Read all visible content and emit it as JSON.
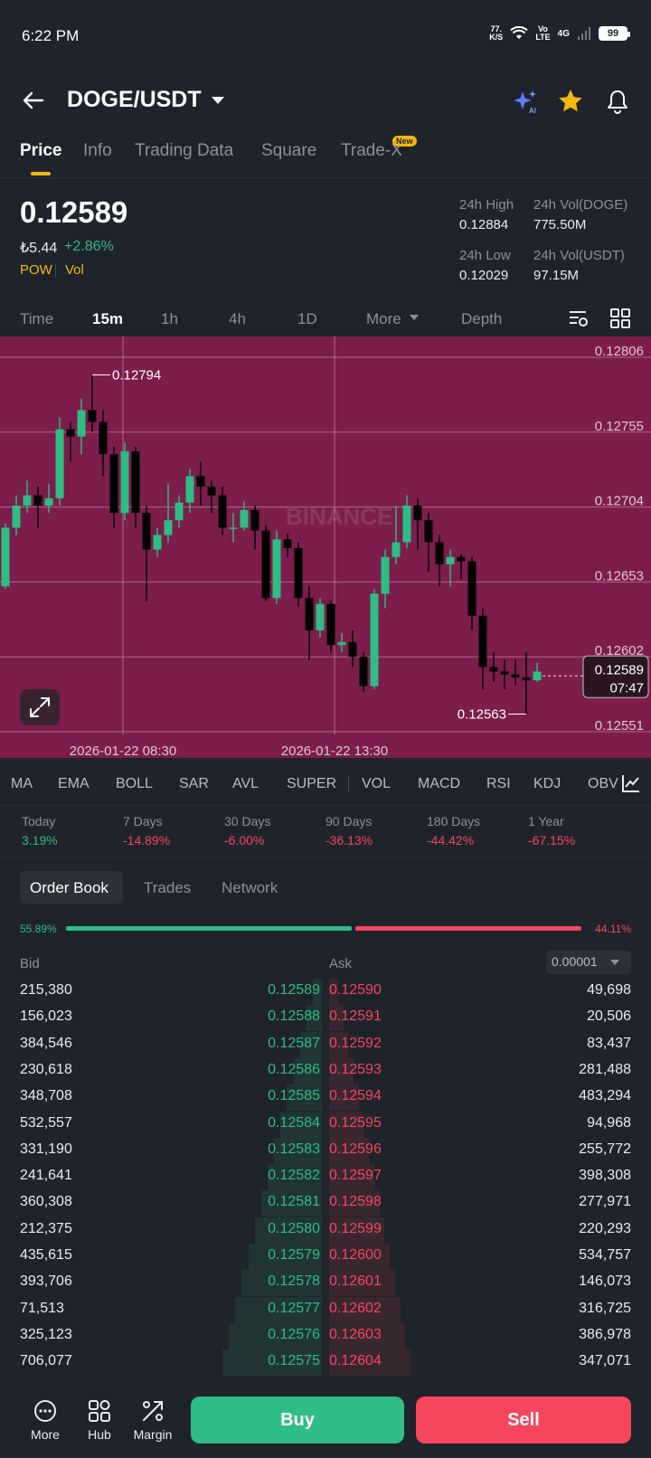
{
  "status_bar": {
    "time": "6:22 PM",
    "net_speed_value": "77.",
    "net_speed_unit": "K/S",
    "volte_top": "Vo",
    "volte_bottom": "LTE",
    "signal_label": "4G",
    "battery": "99",
    "icons": [
      "wifi-icon",
      "signal-icon",
      "battery-icon"
    ]
  },
  "header": {
    "pair": "DOGE/USDT",
    "icons": [
      "back-arrow-icon",
      "chevron-down-icon",
      "ai-sparkle-icon",
      "star-icon",
      "bell-icon"
    ],
    "star_color": "#f0b90b"
  },
  "tabs": [
    {
      "label": "Price",
      "active": true
    },
    {
      "label": "Info"
    },
    {
      "label": "Trading Data"
    },
    {
      "label": "Square"
    },
    {
      "label": "Trade-X",
      "badge": "New"
    }
  ],
  "price": {
    "last": "0.12589",
    "fiat": "₺5.44",
    "change_pct": "+2.86%",
    "tags": [
      "POW",
      "Vol"
    ],
    "stats": {
      "high_label": "24h High",
      "high": "0.12884",
      "low_label": "24h Low",
      "low": "0.12029",
      "vol_base_label": "24h Vol(DOGE)",
      "vol_base": "775.50M",
      "vol_quote_label": "24h Vol(USDT)",
      "vol_quote": "97.15M"
    }
  },
  "chart_toolbar": {
    "timeframes": [
      "Time",
      "15m",
      "1h",
      "4h",
      "1D"
    ],
    "active": "15m",
    "more": "More",
    "depth": "Depth",
    "icons": [
      "chart-settings-icon",
      "grid-layout-icon"
    ]
  },
  "chart_data": {
    "type": "candlestick",
    "watermark": "BINANCE",
    "y_ticks": [
      "0.12806",
      "0.12755",
      "0.12704",
      "0.12653",
      "0.12602",
      "0.12551"
    ],
    "x_ticks": [
      "2026-01-22 08:30",
      "2026-01-22 13:30"
    ],
    "ylim": [
      0.12551,
      0.12806
    ],
    "high_marker": "0.12794",
    "low_marker": "0.12563",
    "current_price": "0.12589",
    "countdown": "07:47",
    "background": "#7c1d4d",
    "up_color": "#2ebd85",
    "down_color": "#000000",
    "candles": [
      [
        0.1265,
        0.1269,
        0.12648,
        0.12693
      ],
      [
        0.1269,
        0.12705,
        0.12685,
        0.12712
      ],
      [
        0.12705,
        0.12712,
        0.127,
        0.12722
      ],
      [
        0.12712,
        0.12705,
        0.1269,
        0.12718
      ],
      [
        0.12705,
        0.1271,
        0.127,
        0.1272
      ],
      [
        0.1271,
        0.12757,
        0.12705,
        0.12765
      ],
      [
        0.12757,
        0.12752,
        0.12735,
        0.12762
      ],
      [
        0.12752,
        0.1277,
        0.1274,
        0.12778
      ],
      [
        0.1277,
        0.12762,
        0.12755,
        0.12794
      ],
      [
        0.12762,
        0.1274,
        0.12725,
        0.1277
      ],
      [
        0.1274,
        0.127,
        0.1269,
        0.12745
      ],
      [
        0.127,
        0.12742,
        0.12695,
        0.12748
      ],
      [
        0.12742,
        0.127,
        0.1269,
        0.12745
      ],
      [
        0.127,
        0.12675,
        0.1264,
        0.12705
      ],
      [
        0.12675,
        0.12685,
        0.1267,
        0.1269
      ],
      [
        0.12685,
        0.12695,
        0.1268,
        0.1272
      ],
      [
        0.12695,
        0.12707,
        0.1269,
        0.12712
      ],
      [
        0.12707,
        0.12725,
        0.127,
        0.1273
      ],
      [
        0.12725,
        0.12718,
        0.12705,
        0.12735
      ],
      [
        0.12718,
        0.12712,
        0.127,
        0.12722
      ],
      [
        0.12712,
        0.1269,
        0.12685,
        0.12718
      ],
      [
        0.1269,
        0.1269,
        0.1268,
        0.127
      ],
      [
        0.1269,
        0.12702,
        0.12688,
        0.12708
      ],
      [
        0.12702,
        0.12688,
        0.12675,
        0.12705
      ],
      [
        0.12688,
        0.12642,
        0.1264,
        0.12692
      ],
      [
        0.12642,
        0.12682,
        0.12638,
        0.12688
      ],
      [
        0.12682,
        0.12676,
        0.1267,
        0.12686
      ],
      [
        0.12676,
        0.12642,
        0.12636,
        0.1268
      ],
      [
        0.12642,
        0.1262,
        0.126,
        0.1265
      ],
      [
        0.1262,
        0.12638,
        0.12615,
        0.12642
      ],
      [
        0.12638,
        0.1261,
        0.12605,
        0.1264
      ],
      [
        0.1261,
        0.12612,
        0.12605,
        0.12618
      ],
      [
        0.12612,
        0.12602,
        0.12595,
        0.1262
      ],
      [
        0.12602,
        0.12582,
        0.12578,
        0.12605
      ],
      [
        0.12582,
        0.12645,
        0.1258,
        0.12648
      ],
      [
        0.12645,
        0.1267,
        0.12635,
        0.12675
      ],
      [
        0.1267,
        0.1268,
        0.12665,
        0.12705
      ],
      [
        0.1268,
        0.12705,
        0.12676,
        0.12712
      ],
      [
        0.12705,
        0.12695,
        0.12675,
        0.1271
      ],
      [
        0.12695,
        0.1268,
        0.1266,
        0.127
      ],
      [
        0.1268,
        0.12665,
        0.1265,
        0.12685
      ],
      [
        0.12665,
        0.1267,
        0.1265,
        0.12675
      ],
      [
        0.1267,
        0.12667,
        0.12655,
        0.12672
      ],
      [
        0.12667,
        0.1263,
        0.1262,
        0.1267
      ],
      [
        0.1263,
        0.12595,
        0.1258,
        0.12635
      ],
      [
        0.12595,
        0.12592,
        0.12585,
        0.12605
      ],
      [
        0.12592,
        0.1259,
        0.1258,
        0.126
      ],
      [
        0.1259,
        0.12588,
        0.12583,
        0.126
      ],
      [
        0.12588,
        0.12586,
        0.12563,
        0.12605
      ],
      [
        0.12586,
        0.12592,
        0.12585,
        0.12598
      ]
    ]
  },
  "indicators": [
    "MA",
    "EMA",
    "BOLL",
    "SAR",
    "AVL",
    "SUPER",
    "VOL",
    "MACD",
    "RSI",
    "KDJ",
    "OBV"
  ],
  "performance": [
    {
      "label": "Today",
      "value": "3.19%",
      "dir": "pos"
    },
    {
      "label": "7 Days",
      "value": "-14.89%",
      "dir": "neg"
    },
    {
      "label": "30 Days",
      "value": "-6.00%",
      "dir": "neg"
    },
    {
      "label": "90 Days",
      "value": "-36.13%",
      "dir": "neg"
    },
    {
      "label": "180 Days",
      "value": "-44.42%",
      "dir": "neg"
    },
    {
      "label": "1 Year",
      "value": "-67.15%",
      "dir": "neg"
    }
  ],
  "order_book": {
    "tabs": [
      "Order Book",
      "Trades",
      "Network"
    ],
    "bid_ratio": "55.89%",
    "ask_ratio": "44.11%",
    "bid_fraction": 0.5589,
    "bid_header": "Bid",
    "ask_header": "Ask",
    "precision": "0.00001",
    "rows": [
      {
        "bid_qty": "215,380",
        "bid": "0.12589",
        "ask": "0.12590",
        "ask_qty": "49,698"
      },
      {
        "bid_qty": "156,023",
        "bid": "0.12588",
        "ask": "0.12591",
        "ask_qty": "20,506"
      },
      {
        "bid_qty": "384,546",
        "bid": "0.12587",
        "ask": "0.12592",
        "ask_qty": "83,437"
      },
      {
        "bid_qty": "230,618",
        "bid": "0.12586",
        "ask": "0.12593",
        "ask_qty": "281,488"
      },
      {
        "bid_qty": "348,708",
        "bid": "0.12585",
        "ask": "0.12594",
        "ask_qty": "483,294"
      },
      {
        "bid_qty": "532,557",
        "bid": "0.12584",
        "ask": "0.12595",
        "ask_qty": "94,968"
      },
      {
        "bid_qty": "331,190",
        "bid": "0.12583",
        "ask": "0.12596",
        "ask_qty": "255,772"
      },
      {
        "bid_qty": "241,641",
        "bid": "0.12582",
        "ask": "0.12597",
        "ask_qty": "398,308"
      },
      {
        "bid_qty": "360,308",
        "bid": "0.12581",
        "ask": "0.12598",
        "ask_qty": "277,971"
      },
      {
        "bid_qty": "212,375",
        "bid": "0.12580",
        "ask": "0.12599",
        "ask_qty": "220,293"
      },
      {
        "bid_qty": "435,615",
        "bid": "0.12579",
        "ask": "0.12600",
        "ask_qty": "534,757"
      },
      {
        "bid_qty": "393,706",
        "bid": "0.12578",
        "ask": "0.12601",
        "ask_qty": "146,073"
      },
      {
        "bid_qty": "71,513",
        "bid": "0.12577",
        "ask": "0.12602",
        "ask_qty": "316,725"
      },
      {
        "bid_qty": "325,123",
        "bid": "0.12576",
        "ask": "0.12603",
        "ask_qty": "386,978"
      },
      {
        "bid_qty": "706,077",
        "bid": "0.12575",
        "ask": "0.12604",
        "ask_qty": "347,071"
      }
    ]
  },
  "bottom_bar": {
    "items": [
      {
        "label": "More",
        "icon": "more-dots-icon"
      },
      {
        "label": "Hub",
        "icon": "hub-icon"
      },
      {
        "label": "Margin",
        "icon": "margin-icon"
      }
    ],
    "buy": "Buy",
    "sell": "Sell"
  }
}
